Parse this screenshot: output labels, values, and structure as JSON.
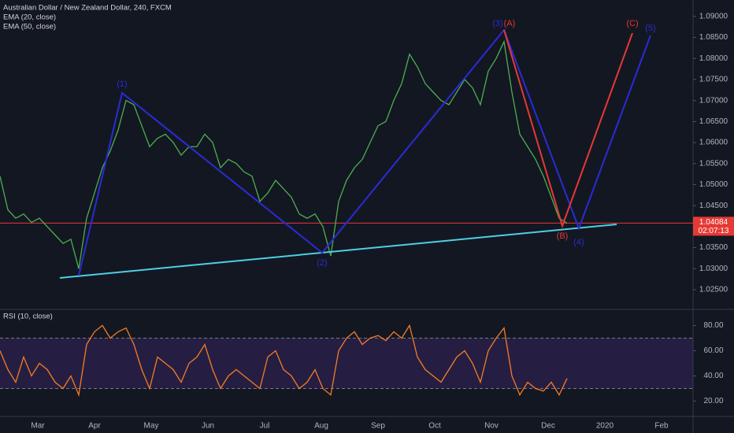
{
  "chart_data": [
    {
      "type": "line",
      "title": "Australian Dollar / New Zealand Dollar, 240, FXCM",
      "indicators": [
        "EMA (20, close)",
        "EMA (50, close)"
      ],
      "color": "#4caf50",
      "values": [
        1.052,
        1.044,
        1.042,
        1.043,
        1.041,
        1.042,
        1.04,
        1.038,
        1.036,
        1.037,
        1.03,
        1.042,
        1.048,
        1.054,
        1.058,
        1.063,
        1.07,
        1.069,
        1.064,
        1.059,
        1.061,
        1.062,
        1.06,
        1.057,
        1.059,
        1.059,
        1.062,
        1.06,
        1.054,
        1.056,
        1.055,
        1.053,
        1.052,
        1.046,
        1.048,
        1.051,
        1.049,
        1.047,
        1.043,
        1.042,
        1.043,
        1.04,
        1.033,
        1.046,
        1.051,
        1.054,
        1.056,
        1.06,
        1.064,
        1.065,
        1.07,
        1.074,
        1.081,
        1.078,
        1.074,
        1.072,
        1.07,
        1.069,
        1.072,
        1.075,
        1.073,
        1.069,
        1.077,
        1.08,
        1.084,
        1.072,
        1.062,
        1.059,
        1.056,
        1.052,
        1.047,
        1.042,
        1.0408
      ],
      "ylim": [
        1.0205,
        1.0939
      ],
      "yticks": [
        {
          "value": 1.025,
          "label": "1.02500"
        },
        {
          "value": 1.03,
          "label": "1.03000"
        },
        {
          "value": 1.035,
          "label": "1.03500"
        },
        {
          "value": 1.04,
          "label": "1.04000"
        },
        {
          "value": 1.045,
          "label": "1.04500"
        },
        {
          "value": 1.05,
          "label": "1.05000"
        },
        {
          "value": 1.055,
          "label": "1.05500"
        },
        {
          "value": 1.06,
          "label": "1.06000"
        },
        {
          "value": 1.065,
          "label": "1.06500"
        },
        {
          "value": 1.07,
          "label": "1.07000"
        },
        {
          "value": 1.075,
          "label": "1.07500"
        },
        {
          "value": 1.08,
          "label": "1.08000"
        },
        {
          "value": 1.085,
          "label": "1.08500"
        },
        {
          "value": 1.09,
          "label": "1.09000"
        }
      ],
      "last_price": {
        "value": 1.04084,
        "label": "1.04084"
      },
      "countdown": "02:07:13",
      "last_price_color": "#e53935",
      "xtick_labels": [
        "Mar",
        "Apr",
        "May",
        "Jun",
        "Jul",
        "Aug",
        "Sep",
        "Oct",
        "Nov",
        "Dec",
        "2020",
        "Feb"
      ],
      "annotations": [
        "(1)",
        "(2)",
        "(3)",
        "(A)",
        "(B)",
        "(4)",
        "(C)",
        "(5)"
      ]
    },
    {
      "type": "line",
      "title": "RSI (10, close)",
      "color": "#f57c24",
      "values": [
        60,
        45,
        35,
        55,
        40,
        50,
        45,
        35,
        30,
        40,
        25,
        65,
        75,
        80,
        70,
        75,
        78,
        65,
        45,
        30,
        55,
        50,
        45,
        35,
        50,
        55,
        65,
        45,
        30,
        40,
        45,
        40,
        35,
        30,
        55,
        60,
        45,
        40,
        30,
        35,
        45,
        30,
        25,
        60,
        70,
        75,
        65,
        70,
        72,
        68,
        75,
        70,
        80,
        55,
        45,
        40,
        35,
        45,
        55,
        60,
        50,
        35,
        60,
        70,
        78,
        40,
        25,
        35,
        30,
        28,
        35,
        25,
        38
      ],
      "band": [
        30,
        70
      ],
      "band_color": "#673ab7",
      "ylim": [
        8.5,
        91.5
      ],
      "yticks": [
        {
          "value": 20,
          "label": "20.00"
        },
        {
          "value": 40,
          "label": "40.00"
        },
        {
          "value": 60,
          "label": "60.00"
        },
        {
          "value": 80,
          "label": "80.00"
        }
      ]
    }
  ]
}
